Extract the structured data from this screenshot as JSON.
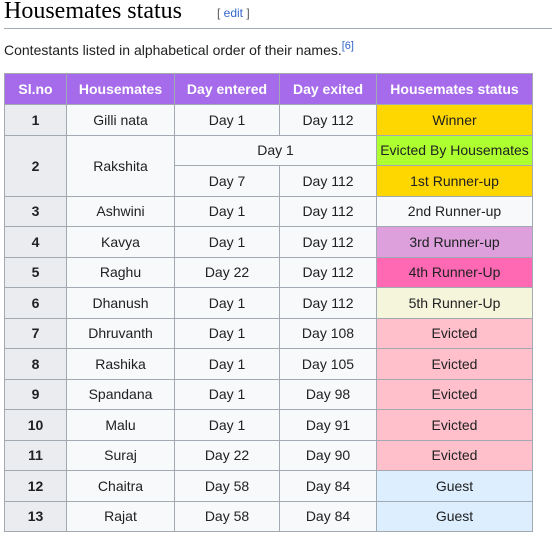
{
  "heading": {
    "title": "Housemates status",
    "edit_open": "[ ",
    "edit_label": "edit",
    "edit_close": " ]"
  },
  "intro": {
    "text": "Contestants listed in alphabetical order of their names.",
    "ref": "[6]"
  },
  "table": {
    "headers": [
      "Sl.no",
      "Housemates",
      "Day entered",
      "Day exited",
      "Housemates status"
    ],
    "header_color": "#a56bea",
    "rows": [
      {
        "sl": "1",
        "name": "Gilli nata",
        "entered": "Day 1",
        "exited": "Day 112",
        "status": "Winner",
        "color": "#ffd700"
      },
      {
        "sl": "2",
        "name": "Rakshita",
        "merged_day": "Day 1",
        "status": "Evicted By Housemates",
        "color": "#adff2f"
      },
      {
        "entered": "Day 7",
        "exited": "Day 112",
        "status": "1st Runner-up",
        "color": "#ffd700"
      },
      {
        "sl": "3",
        "name": "Ashwini",
        "entered": "Day 1",
        "exited": "Day 112",
        "status": "2nd Runner-up",
        "color": "#f8f9fa"
      },
      {
        "sl": "4",
        "name": "Kavya",
        "entered": "Day 1",
        "exited": "Day 112",
        "status": "3rd Runner-up",
        "color": "#dda0dd"
      },
      {
        "sl": "5",
        "name": "Raghu",
        "entered": "Day 22",
        "exited": "Day 112",
        "status": "4th Runner-Up",
        "color": "#ff69b4"
      },
      {
        "sl": "6",
        "name": "Dhanush",
        "entered": "Day 1",
        "exited": "Day 112",
        "status": "5th Runner-Up",
        "color": "#f5f5dc"
      },
      {
        "sl": "7",
        "name": "Dhruvanth",
        "entered": "Day 1",
        "exited": "Day 108",
        "status": "Evicted",
        "color": "#ffc0cb"
      },
      {
        "sl": "8",
        "name": "Rashika",
        "entered": "Day 1",
        "exited": "Day 105",
        "status": "Evicted",
        "color": "#ffc0cb"
      },
      {
        "sl": "9",
        "name": "Spandana",
        "entered": "Day 1",
        "exited": "Day 98",
        "status": "Evicted",
        "color": "#ffc0cb"
      },
      {
        "sl": "10",
        "name": "Malu",
        "entered": "Day 1",
        "exited": "Day 91",
        "status": "Evicted",
        "color": "#ffc0cb"
      },
      {
        "sl": "11",
        "name": "Suraj",
        "entered": "Day 22",
        "exited": "Day 90",
        "status": "Evicted",
        "color": "#ffc0cb"
      },
      {
        "sl": "12",
        "name": "Chaitra",
        "entered": "Day 58",
        "exited": "Day 84",
        "status": "Guest",
        "color": "#ddeeff"
      },
      {
        "sl": "13",
        "name": "Rajat",
        "entered": "Day 58",
        "exited": "Day 84",
        "status": "Guest",
        "color": "#ddeeff"
      }
    ]
  }
}
